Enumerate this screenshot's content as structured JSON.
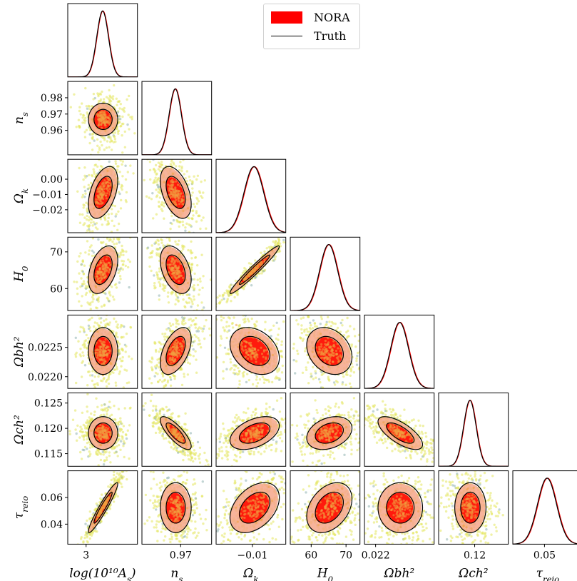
{
  "legend": {
    "entries": [
      {
        "label": "NORA",
        "style": "filled",
        "color": "#ff0000"
      },
      {
        "label": "Truth",
        "style": "line",
        "color": "#000000"
      }
    ]
  },
  "colors": {
    "nora_fill_1sigma": "#ff1a0d",
    "nora_fill_2sigma": "#f6a68a",
    "truth_line": "#000000",
    "nora_line": "#ff0000",
    "samples_primary": "#e3e65c",
    "samples_secondary": "#8fb3b0",
    "samples_inner": "#f0a040"
  },
  "chart_data": {
    "type": "scatter",
    "subtype": "corner-plot",
    "parameters": [
      {
        "key": "logA",
        "label": "log(10¹⁰A",
        "sub": "s",
        "tail": ")",
        "range": [
          2.95,
          3.14
        ],
        "mean": 3.045,
        "sigma": 0.016,
        "ticks": [
          {
            "v": 3.0,
            "t": "3"
          }
        ]
      },
      {
        "key": "ns",
        "label": "n",
        "sub": "s",
        "range": [
          0.945,
          0.99
        ],
        "mean": 0.9665,
        "sigma": 0.004,
        "ticks": [
          {
            "v": 0.96,
            "t": "0.96"
          },
          {
            "v": 0.97,
            "t": "0.97"
          },
          {
            "v": 0.98,
            "t": "0.98"
          }
        ]
      },
      {
        "key": "ok",
        "label": "Ω",
        "sub": "k",
        "range": [
          -0.035,
          0.013
        ],
        "mean": -0.009,
        "sigma": 0.0068,
        "ticks": [
          {
            "v": -0.02,
            "t": "−0.02"
          },
          {
            "v": -0.01,
            "t": "−0.01"
          },
          {
            "v": 0.0,
            "t": "0.00"
          }
        ]
      },
      {
        "key": "H0",
        "label": "H",
        "sub": "0",
        "range": [
          54,
          74
        ],
        "mean": 65.0,
        "sigma": 2.6,
        "ticks": [
          {
            "v": 60,
            "t": "60"
          },
          {
            "v": 70,
            "t": "70"
          }
        ]
      },
      {
        "key": "obh2",
        "label": "Ωbh²",
        "sub": "",
        "range": [
          0.0218,
          0.02305
        ],
        "mean": 0.02243,
        "sigma": 0.00016,
        "ticks": [
          {
            "v": 0.022,
            "t": "0.0220"
          },
          {
            "v": 0.0225,
            "t": "0.0225"
          }
        ],
        "xticks": [
          {
            "v": 0.022,
            "t": "0.022"
          }
        ]
      },
      {
        "key": "och2",
        "label": "Ωch²",
        "sub": "",
        "range": [
          0.1125,
          0.127
        ],
        "mean": 0.119,
        "sigma": 0.0013,
        "ticks": [
          {
            "v": 0.115,
            "t": "0.115"
          },
          {
            "v": 0.12,
            "t": "0.120"
          },
          {
            "v": 0.125,
            "t": "0.125"
          }
        ],
        "xticks": [
          {
            "v": 0.12,
            "t": "0.12"
          }
        ]
      },
      {
        "key": "tau",
        "label": "τ",
        "sub": "reio",
        "range": [
          0.025,
          0.08
        ],
        "mean": 0.052,
        "sigma": 0.0075,
        "ticks": [
          {
            "v": 0.04,
            "t": "0.04"
          },
          {
            "v": 0.06,
            "t": "0.06"
          }
        ],
        "xticks": [
          {
            "v": 0.05,
            "t": "0.05"
          }
        ]
      }
    ],
    "correlations": [
      {
        "pair": [
          "ns",
          "logA"
        ],
        "rho": 0.0
      },
      {
        "pair": [
          "ok",
          "logA"
        ],
        "rho": 0.45
      },
      {
        "pair": [
          "ok",
          "ns"
        ],
        "rho": -0.45
      },
      {
        "pair": [
          "H0",
          "logA"
        ],
        "rho": 0.4
      },
      {
        "pair": [
          "H0",
          "ns"
        ],
        "rho": -0.4
      },
      {
        "pair": [
          "H0",
          "ok"
        ],
        "rho": 0.97
      },
      {
        "pair": [
          "obh2",
          "logA"
        ],
        "rho": 0.0
      },
      {
        "pair": [
          "obh2",
          "ns"
        ],
        "rho": 0.5
      },
      {
        "pair": [
          "obh2",
          "ok"
        ],
        "rho": -0.3
      },
      {
        "pair": [
          "obh2",
          "H0"
        ],
        "rho": -0.25
      },
      {
        "pair": [
          "och2",
          "logA"
        ],
        "rho": 0.0
      },
      {
        "pair": [
          "och2",
          "ns"
        ],
        "rho": -0.8
      },
      {
        "pair": [
          "och2",
          "ok"
        ],
        "rho": 0.45
      },
      {
        "pair": [
          "och2",
          "H0"
        ],
        "rho": 0.3
      },
      {
        "pair": [
          "och2",
          "obh2"
        ],
        "rho": -0.7
      },
      {
        "pair": [
          "tau",
          "logA"
        ],
        "rho": 0.95
      },
      {
        "pair": [
          "tau",
          "ns"
        ],
        "rho": 0.0
      },
      {
        "pair": [
          "tau",
          "ok"
        ],
        "rho": 0.4
      },
      {
        "pair": [
          "tau",
          "H0"
        ],
        "rho": 0.35
      },
      {
        "pair": [
          "tau",
          "obh2"
        ],
        "rho": 0.0
      },
      {
        "pair": [
          "tau",
          "och2"
        ],
        "rho": 0.0
      }
    ],
    "series": [
      {
        "name": "NORA",
        "kind": "filled-contours-1sigma-2sigma"
      },
      {
        "name": "Truth",
        "kind": "line-contours"
      }
    ],
    "grid": false,
    "legend_position": "top-center"
  }
}
